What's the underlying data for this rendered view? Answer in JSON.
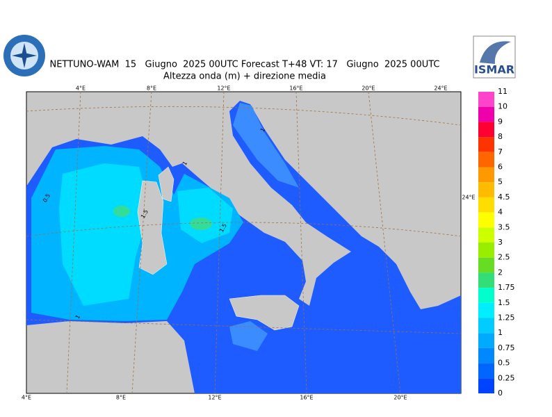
{
  "header": {
    "title": "NETTUNO-WAM  15   Giugno  2025 00UTC Forecast T+48 VT: 17   Giugno  2025 00UTC",
    "subtitle": "Altezza onda (m) + direzione media"
  },
  "logo": "ISMAR",
  "axes": {
    "top": [
      "4°E",
      "8°E",
      "12°E",
      "16°E",
      "20°E",
      "24°E"
    ],
    "bottom": [
      "4°E",
      "8°E",
      "12°E",
      "16°E",
      "20°E"
    ],
    "right": [
      "24°E"
    ]
  },
  "contour_labels": [
    "0.5",
    "1.5",
    "1.5",
    "1",
    "1",
    "1"
  ],
  "colorbar": [
    {
      "label": "11",
      "color": "#ff44cc"
    },
    {
      "label": "10",
      "color": "#ee00aa"
    },
    {
      "label": "9",
      "color": "#ff0033"
    },
    {
      "label": "8",
      "color": "#ff3300"
    },
    {
      "label": "7",
      "color": "#ff6600"
    },
    {
      "label": "6",
      "color": "#ff9900"
    },
    {
      "label": "5",
      "color": "#ffbb00"
    },
    {
      "label": "4.5",
      "color": "#ffdd00"
    },
    {
      "label": "4",
      "color": "#ffff00"
    },
    {
      "label": "3.5",
      "color": "#ccff00"
    },
    {
      "label": "3",
      "color": "#99ee00"
    },
    {
      "label": "2.5",
      "color": "#66dd22"
    },
    {
      "label": "2",
      "color": "#33dd77"
    },
    {
      "label": "1.75",
      "color": "#00ffcc"
    },
    {
      "label": "1.5",
      "color": "#00eeff"
    },
    {
      "label": "1.25",
      "color": "#00ccff"
    },
    {
      "label": "1",
      "color": "#00aaff"
    },
    {
      "label": "0.75",
      "color": "#0088ff"
    },
    {
      "label": "0.5",
      "color": "#0066ff"
    },
    {
      "label": "0.25",
      "color": "#0044ff"
    },
    {
      "label": "0"
    }
  ]
}
